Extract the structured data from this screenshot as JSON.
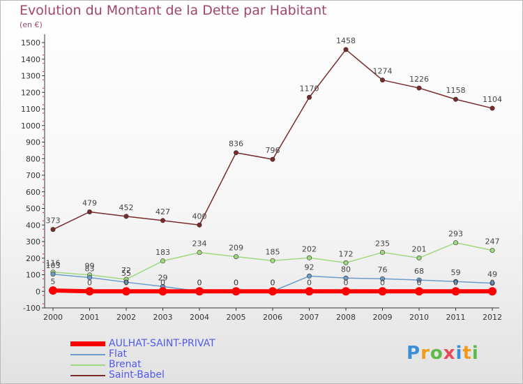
{
  "header": {
    "title": "Evolution du Montant de la Dette par Habitant",
    "subtitle": "(en €)"
  },
  "logo": {
    "text": "Proxiti"
  },
  "chart_data": {
    "type": "line",
    "title": "Evolution du Montant de la Dette par Habitant",
    "subtitle": "(en €)",
    "xlabel": "",
    "ylabel": "",
    "x": [
      "2000",
      "2001",
      "2002",
      "2003",
      "2004",
      "2005",
      "2006",
      "2007",
      "2008",
      "2009",
      "2010",
      "2011",
      "2012"
    ],
    "ylim": [
      -100,
      1500
    ],
    "yticks": [
      -100,
      0,
      100,
      200,
      300,
      400,
      500,
      600,
      700,
      800,
      900,
      1000,
      1100,
      1200,
      1300,
      1400,
      1500
    ],
    "grid": false,
    "legend_position": "bottom-left",
    "series": [
      {
        "name": "AULHAT-SAINT-PRIVAT",
        "color": "#ff0000",
        "values": [
          5,
          0,
          0,
          0,
          0,
          0,
          0,
          0,
          0,
          0,
          0,
          0,
          0
        ],
        "labels": [
          "5",
          "0",
          "0",
          "0",
          "0",
          "0",
          "0",
          "0",
          "0",
          "0",
          "0",
          "0",
          "0"
        ]
      },
      {
        "name": "Flat",
        "color": "#6b9ccc",
        "values": [
          103,
          83,
          55,
          29,
          0,
          0,
          0,
          92,
          80,
          76,
          68,
          59,
          49
        ],
        "labels": [
          "103",
          "83",
          "55",
          "29",
          "0",
          "0",
          "0",
          "92",
          "80",
          "76",
          "68",
          "59",
          "49"
        ]
      },
      {
        "name": "Brenat",
        "color": "#a0d880",
        "values": [
          116,
          99,
          72,
          183,
          234,
          209,
          185,
          202,
          172,
          235,
          201,
          293,
          247
        ],
        "labels": [
          "116",
          "99",
          "72",
          "183",
          "234",
          "209",
          "185",
          "202",
          "172",
          "235",
          "201",
          "293",
          "247"
        ]
      },
      {
        "name": "Saint-Babel",
        "color": "#7a2a2a",
        "values": [
          373,
          479,
          452,
          427,
          400,
          836,
          796,
          1170,
          1458,
          1274,
          1226,
          1158,
          1104
        ],
        "labels": [
          "373",
          "479",
          "452",
          "427",
          "400",
          "836",
          "796",
          "1170",
          "1458",
          "1274",
          "1226",
          "1158",
          "1104"
        ]
      }
    ]
  }
}
